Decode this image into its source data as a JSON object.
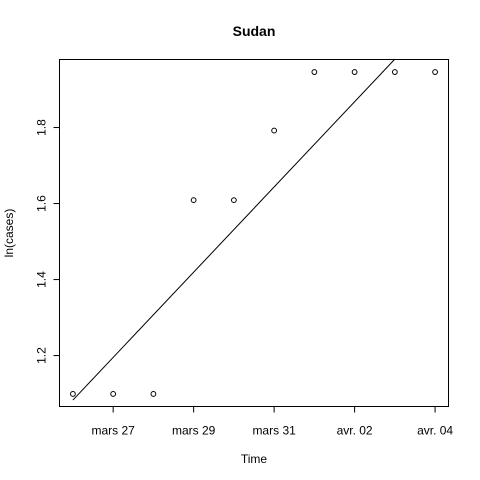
{
  "chart_data": {
    "type": "scatter",
    "title": "Sudan",
    "xlabel": "Time",
    "ylabel": "ln(cases)",
    "x": [
      "2020-03-26",
      "2020-03-27",
      "2020-03-28",
      "2020-03-29",
      "2020-03-30",
      "2020-03-31",
      "2020-04-01",
      "2020-04-02",
      "2020-04-03",
      "2020-04-04"
    ],
    "series": [
      {
        "values": [
          1.099,
          1.099,
          1.099,
          1.609,
          1.609,
          1.792,
          1.946,
          1.946,
          1.946,
          1.946
        ]
      }
    ],
    "fit_line": {
      "from": [
        "2020-03-26",
        1.083
      ],
      "to": [
        "2020-04-03",
        1.98
      ]
    },
    "x_ticks": [
      {
        "date": "2020-03-27",
        "label": "mars 27"
      },
      {
        "date": "2020-03-29",
        "label": "mars 29"
      },
      {
        "date": "2020-03-31",
        "label": "mars 31"
      },
      {
        "date": "2020-04-02",
        "label": "avr. 02"
      },
      {
        "date": "2020-04-04",
        "label": "avr. 04"
      }
    ],
    "y_ticks": [
      1.2,
      1.4,
      1.6,
      1.8
    ],
    "xlim": [
      "2020-03-25T16:00",
      "2020-04-04T08:00"
    ],
    "ylim": [
      1.066,
      1.979
    ],
    "grid": false,
    "legend": "none"
  }
}
